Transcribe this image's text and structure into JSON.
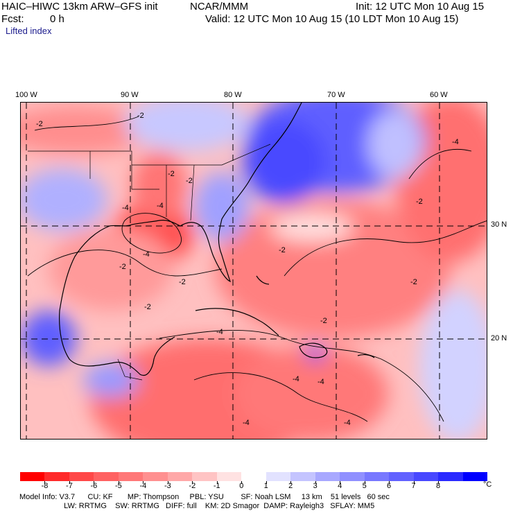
{
  "header": {
    "model_title": "HAIC–HIWC 13km ARW–GFS init",
    "org": "NCAR/MMM",
    "fcst_label": "Fcst:",
    "fcst_value": "0 h",
    "init": "Init: 12 UTC Mon 10 Aug 15",
    "valid": "Valid: 12 UTC Mon 10 Aug 15 (10 LDT Mon 10 Aug 15)",
    "field": "Lifted index"
  },
  "map": {
    "longitude_labels": [
      "100 W",
      "90 W",
      "80 W",
      "70 W",
      "60 W"
    ],
    "latitude_labels": [
      "30 N",
      "20 N"
    ],
    "contour_labels": [
      "-2",
      "-2",
      "-2",
      "-4",
      "-2",
      "-4",
      "-2",
      "-4",
      "-2",
      "-2",
      "-2",
      "-2",
      "-2",
      "-4",
      "-2",
      "-4",
      "-4",
      "-4",
      "-4",
      "-4"
    ]
  },
  "colorbar": {
    "labels": [
      "-8",
      "-7",
      "-6",
      "-5",
      "-4",
      "-3",
      "-2",
      "-1",
      "0",
      "1",
      "2",
      "3",
      "4",
      "5",
      "6",
      "7",
      "8"
    ],
    "unit": "°C",
    "colors": [
      "#ff0000",
      "#ff2a2a",
      "#ff4848",
      "#ff6262",
      "#ff7878",
      "#ff9090",
      "#ffa8a8",
      "#ffc4c4",
      "#ffe2e2",
      "#ffffff",
      "#e2e2ff",
      "#c4c4ff",
      "#a8a8ff",
      "#9090ff",
      "#7878ff",
      "#6262ff",
      "#4848ff",
      "#2a2aff",
      "#0000ff"
    ]
  },
  "model_info": {
    "line1": "Model Info: V3.7      CU: KF       MP: Thompson     PBL: YSU        SF: Noah LSM     13 km    51 levels   60 sec",
    "line2": "                     LW: RRTMG    SW: RRTMG   DIFF: full    KM: 2D Smagor  DAMP: Rayleigh3   SFLAY: MM5"
  }
}
